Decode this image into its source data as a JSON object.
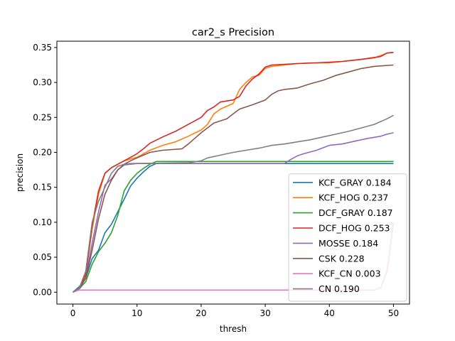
{
  "chart_data": {
    "type": "line",
    "title": "car2_s Precision",
    "xlabel": "thresh",
    "ylabel": "precision",
    "xlim": [
      -2.5,
      52.5
    ],
    "ylim": [
      -0.017,
      0.359
    ],
    "xticks": [
      0,
      10,
      20,
      30,
      40,
      50
    ],
    "xtick_labels": [
      "0",
      "10",
      "20",
      "30",
      "40",
      "50"
    ],
    "yticks": [
      0.0,
      0.05,
      0.1,
      0.15,
      0.2,
      0.25,
      0.3,
      0.35
    ],
    "ytick_labels": [
      "0.00",
      "0.05",
      "0.10",
      "0.15",
      "0.20",
      "0.25",
      "0.30",
      "0.35"
    ],
    "grid": false,
    "legend_position": "lower right",
    "series": [
      {
        "name": "KCF_GRAY 0.184",
        "color": "#1f77b4",
        "points": [
          [
            0,
            0
          ],
          [
            1,
            0.008
          ],
          [
            2,
            0.02
          ],
          [
            3,
            0.048
          ],
          [
            4,
            0.06
          ],
          [
            5,
            0.085
          ],
          [
            6,
            0.097
          ],
          [
            7,
            0.115
          ],
          [
            8,
            0.133
          ],
          [
            9,
            0.152
          ],
          [
            10,
            0.163
          ],
          [
            11,
            0.172
          ],
          [
            12,
            0.18
          ],
          [
            13,
            0.184
          ],
          [
            50,
            0.184
          ]
        ]
      },
      {
        "name": "KCF_HOG 0.237",
        "color": "#ff7f0e",
        "points": [
          [
            0,
            0
          ],
          [
            1,
            0.006
          ],
          [
            2,
            0.025
          ],
          [
            3,
            0.09
          ],
          [
            4,
            0.14
          ],
          [
            5,
            0.17
          ],
          [
            6,
            0.178
          ],
          [
            7,
            0.183
          ],
          [
            8,
            0.188
          ],
          [
            10,
            0.193
          ],
          [
            12,
            0.203
          ],
          [
            14,
            0.21
          ],
          [
            16,
            0.215
          ],
          [
            18,
            0.223
          ],
          [
            20,
            0.232
          ],
          [
            21,
            0.24
          ],
          [
            22,
            0.255
          ],
          [
            23,
            0.262
          ],
          [
            25,
            0.27
          ],
          [
            26,
            0.29
          ],
          [
            27,
            0.3
          ],
          [
            28,
            0.308
          ],
          [
            29,
            0.31
          ],
          [
            30,
            0.32
          ],
          [
            31,
            0.323
          ],
          [
            33,
            0.325
          ],
          [
            35,
            0.327
          ],
          [
            37,
            0.328
          ],
          [
            40,
            0.328
          ],
          [
            43,
            0.331
          ],
          [
            45,
            0.333
          ],
          [
            47,
            0.335
          ],
          [
            49,
            0.342
          ],
          [
            50,
            0.343
          ]
        ]
      },
      {
        "name": "DCF_GRAY 0.187",
        "color": "#2ca02c",
        "points": [
          [
            0,
            0
          ],
          [
            1,
            0.005
          ],
          [
            2,
            0.015
          ],
          [
            3,
            0.04
          ],
          [
            4,
            0.058
          ],
          [
            5,
            0.07
          ],
          [
            6,
            0.085
          ],
          [
            7,
            0.11
          ],
          [
            8,
            0.145
          ],
          [
            9,
            0.16
          ],
          [
            10,
            0.17
          ],
          [
            11,
            0.177
          ],
          [
            12,
            0.183
          ],
          [
            13,
            0.187
          ],
          [
            50,
            0.187
          ]
        ]
      },
      {
        "name": "DCF_HOG 0.253",
        "color": "#d62728",
        "points": [
          [
            0,
            0
          ],
          [
            1,
            0.006
          ],
          [
            2,
            0.025
          ],
          [
            3,
            0.095
          ],
          [
            4,
            0.145
          ],
          [
            5,
            0.17
          ],
          [
            6,
            0.178
          ],
          [
            7,
            0.183
          ],
          [
            8,
            0.188
          ],
          [
            9,
            0.193
          ],
          [
            10,
            0.198
          ],
          [
            11,
            0.205
          ],
          [
            12,
            0.213
          ],
          [
            14,
            0.222
          ],
          [
            16,
            0.23
          ],
          [
            18,
            0.24
          ],
          [
            20,
            0.25
          ],
          [
            21,
            0.26
          ],
          [
            22,
            0.265
          ],
          [
            23,
            0.272
          ],
          [
            25,
            0.275
          ],
          [
            26,
            0.28
          ],
          [
            27,
            0.295
          ],
          [
            28,
            0.305
          ],
          [
            29,
            0.312
          ],
          [
            30,
            0.322
          ],
          [
            31,
            0.325
          ],
          [
            33,
            0.326
          ],
          [
            35,
            0.327
          ],
          [
            38,
            0.328
          ],
          [
            42,
            0.33
          ],
          [
            45,
            0.333
          ],
          [
            48,
            0.337
          ],
          [
            49,
            0.342
          ],
          [
            50,
            0.343
          ]
        ]
      },
      {
        "name": "MOSSE 0.184",
        "color": "#9467bd",
        "points": [
          [
            0,
            0
          ],
          [
            1,
            0.005
          ],
          [
            2,
            0.02
          ],
          [
            3,
            0.07
          ],
          [
            4,
            0.115
          ],
          [
            5,
            0.153
          ],
          [
            6,
            0.162
          ],
          [
            7,
            0.175
          ],
          [
            8,
            0.182
          ],
          [
            9,
            0.183
          ],
          [
            10,
            0.184
          ],
          [
            33,
            0.184
          ],
          [
            34,
            0.19
          ],
          [
            35,
            0.195
          ],
          [
            36,
            0.198
          ],
          [
            38,
            0.203
          ],
          [
            40,
            0.21
          ],
          [
            42,
            0.212
          ],
          [
            44,
            0.216
          ],
          [
            46,
            0.22
          ],
          [
            48,
            0.223
          ],
          [
            49,
            0.226
          ],
          [
            50,
            0.228
          ]
        ]
      },
      {
        "name": "CSK 0.228",
        "color": "#8c564b",
        "points": [
          [
            0,
            0
          ],
          [
            1,
            0.006
          ],
          [
            2,
            0.02
          ],
          [
            3,
            0.06
          ],
          [
            4,
            0.105
          ],
          [
            5,
            0.14
          ],
          [
            6,
            0.16
          ],
          [
            7,
            0.175
          ],
          [
            8,
            0.183
          ],
          [
            9,
            0.188
          ],
          [
            10,
            0.192
          ],
          [
            11,
            0.196
          ],
          [
            12,
            0.2
          ],
          [
            14,
            0.203
          ],
          [
            17,
            0.205
          ],
          [
            18,
            0.212
          ],
          [
            19,
            0.22
          ],
          [
            20,
            0.228
          ],
          [
            21,
            0.235
          ],
          [
            22,
            0.242
          ],
          [
            24,
            0.248
          ],
          [
            25,
            0.255
          ],
          [
            26,
            0.262
          ],
          [
            28,
            0.268
          ],
          [
            30,
            0.275
          ],
          [
            31,
            0.283
          ],
          [
            32,
            0.288
          ],
          [
            33,
            0.29
          ],
          [
            35,
            0.292
          ],
          [
            37,
            0.298
          ],
          [
            39,
            0.303
          ],
          [
            41,
            0.31
          ],
          [
            43,
            0.315
          ],
          [
            45,
            0.32
          ],
          [
            47,
            0.323
          ],
          [
            50,
            0.325
          ]
        ]
      },
      {
        "name": "KCF_CN 0.003",
        "color": "#e377c2",
        "points": [
          [
            0,
            0
          ],
          [
            1,
            0.003
          ],
          [
            47,
            0.003
          ],
          [
            48,
            0.006
          ],
          [
            49,
            0.03
          ],
          [
            50,
            0.1
          ]
        ]
      },
      {
        "name": "CN 0.190",
        "color": "#7f7f7f",
        "points": [
          [
            0,
            0
          ],
          [
            1,
            0.006
          ],
          [
            2,
            0.03
          ],
          [
            3,
            0.1
          ],
          [
            4,
            0.13
          ],
          [
            5,
            0.15
          ],
          [
            6,
            0.17
          ],
          [
            7,
            0.18
          ],
          [
            8,
            0.183
          ],
          [
            9,
            0.184
          ],
          [
            18,
            0.185
          ],
          [
            20,
            0.188
          ],
          [
            21,
            0.192
          ],
          [
            23,
            0.196
          ],
          [
            25,
            0.2
          ],
          [
            27,
            0.203
          ],
          [
            29,
            0.206
          ],
          [
            31,
            0.21
          ],
          [
            33,
            0.212
          ],
          [
            35,
            0.215
          ],
          [
            37,
            0.218
          ],
          [
            39,
            0.222
          ],
          [
            41,
            0.226
          ],
          [
            43,
            0.23
          ],
          [
            45,
            0.235
          ],
          [
            47,
            0.24
          ],
          [
            49,
            0.248
          ],
          [
            50,
            0.253
          ]
        ]
      }
    ]
  }
}
